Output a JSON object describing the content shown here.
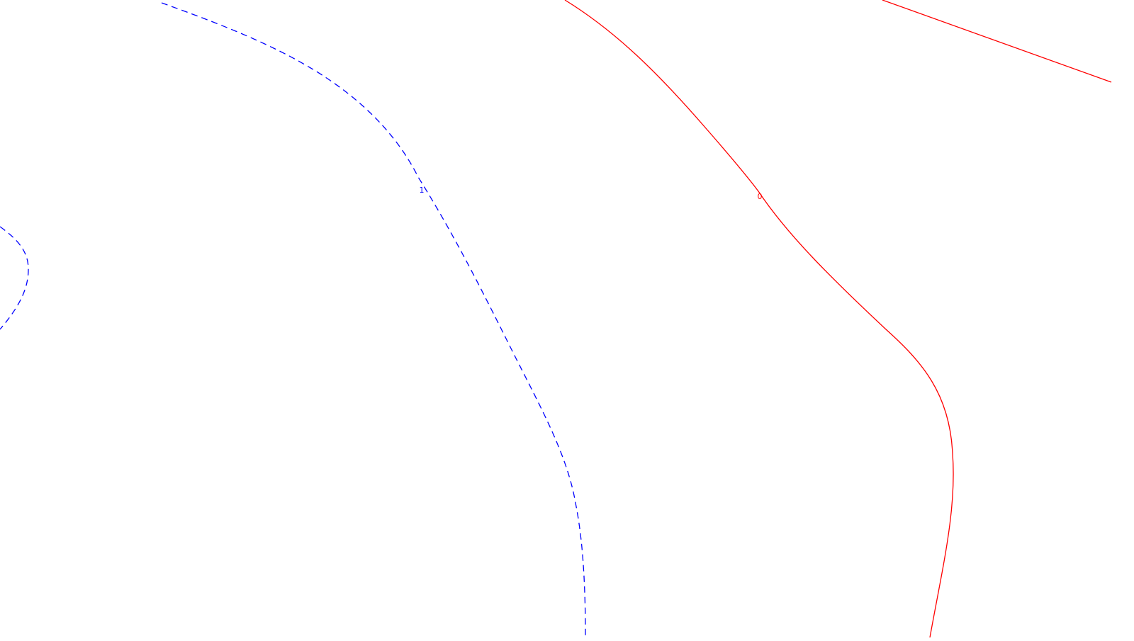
{
  "colors": {
    "background": "#ffffff",
    "positive_contour": "#ff0000",
    "negative_contour": "#0000ff"
  },
  "chart_data": {
    "type": "contour",
    "grid": false,
    "contour_levels": [
      {
        "name": "",
        "level_label": "1",
        "color": "#0000ff",
        "line_style": "dashed"
      },
      {
        "name": "",
        "level_label": "0",
        "color": "#ff0000",
        "line_style": "solid"
      }
    ],
    "title": "",
    "xlabel": "",
    "ylabel": ""
  }
}
